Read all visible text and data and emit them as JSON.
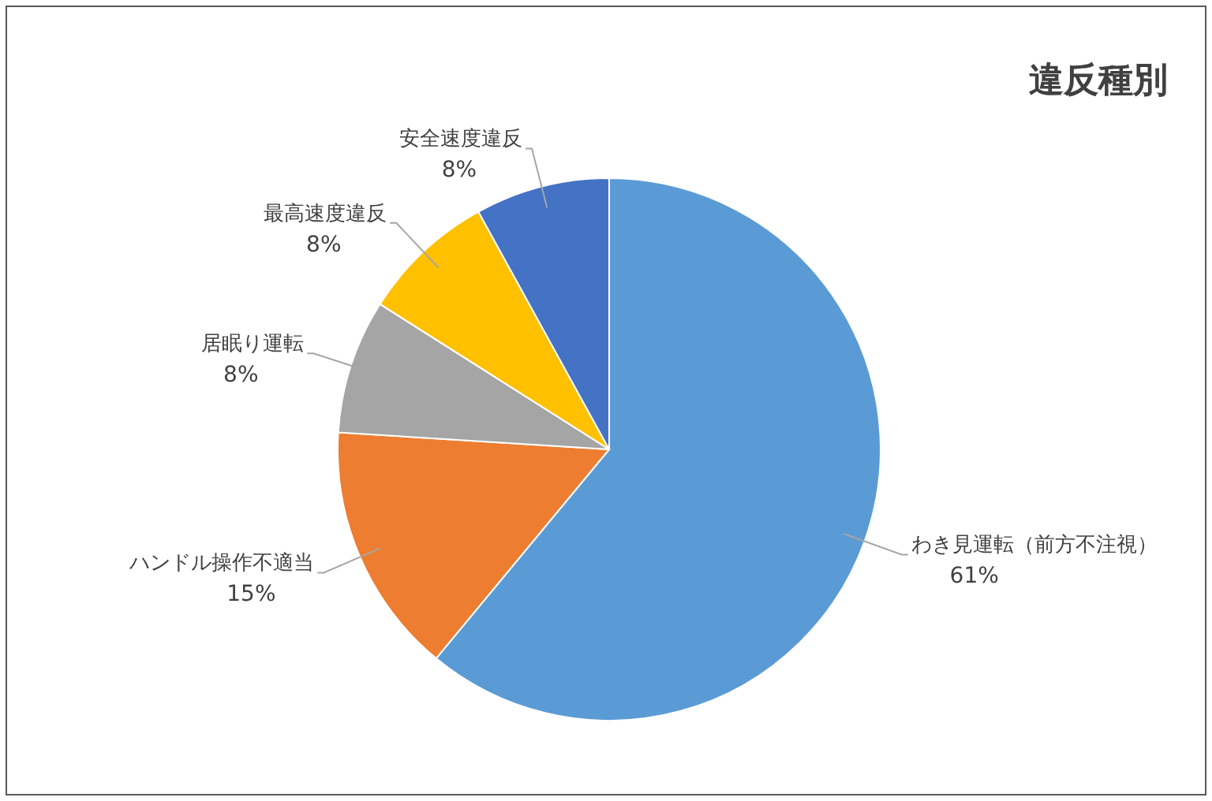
{
  "chart_data": {
    "type": "pie",
    "title": "違反種別",
    "categories": [
      "わき見運転（前方不注視）",
      "ハンドル操作不適当",
      "居眠り運転",
      "最高速度違反",
      "安全速度違反"
    ],
    "values": [
      61,
      15,
      8,
      8,
      8
    ],
    "value_labels": [
      "61%",
      "15%",
      "8%",
      "8%",
      "8%"
    ],
    "colors": [
      "#5b9bd5",
      "#ed7d31",
      "#a5a5a5",
      "#ffc000",
      "#4472c4"
    ]
  }
}
